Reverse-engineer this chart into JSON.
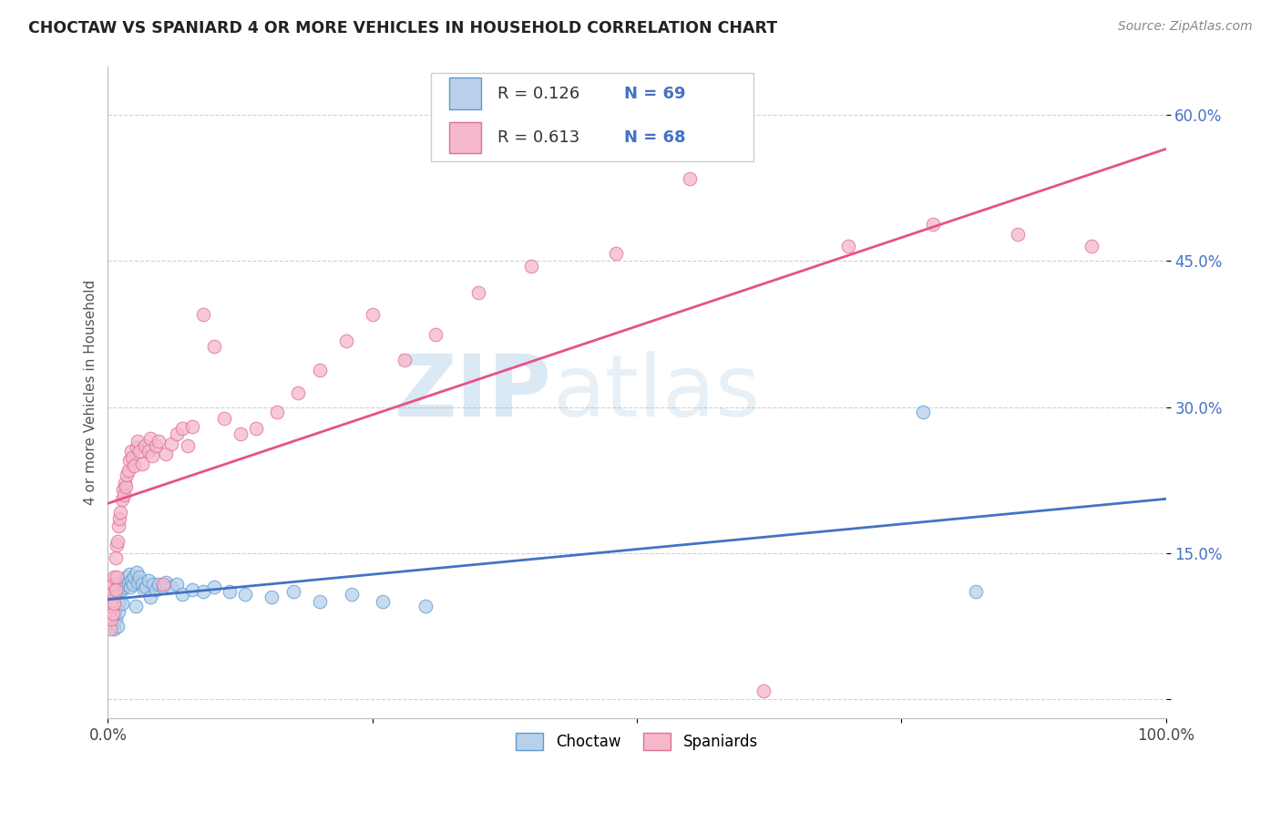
{
  "title": "CHOCTAW VS SPANIARD 4 OR MORE VEHICLES IN HOUSEHOLD CORRELATION CHART",
  "source": "Source: ZipAtlas.com",
  "ylabel": "4 or more Vehicles in Household",
  "xlim": [
    0.0,
    1.0
  ],
  "ylim": [
    -0.02,
    0.65
  ],
  "xtick_positions": [
    0.0,
    0.25,
    0.5,
    0.75,
    1.0
  ],
  "xtick_labels": [
    "0.0%",
    "",
    "",
    "",
    "100.0%"
  ],
  "ytick_positions": [
    0.0,
    0.15,
    0.3,
    0.45,
    0.6
  ],
  "ytick_labels": [
    "",
    "15.0%",
    "30.0%",
    "45.0%",
    "60.0%"
  ],
  "choctaw_fill": "#b8d0ea",
  "choctaw_edge": "#5b9bd5",
  "spaniard_fill": "#f5b8cb",
  "spaniard_edge": "#e07090",
  "choctaw_line_color": "#4472c4",
  "spaniard_line_color": "#e8508a",
  "R_choctaw": 0.126,
  "N_choctaw": 69,
  "R_spaniard": 0.613,
  "N_spaniard": 68,
  "watermark_zip": "ZIP",
  "watermark_atlas": "atlas",
  "background_color": "#ffffff",
  "grid_color": "#cccccc",
  "choctaw_x": [
    0.001,
    0.002,
    0.002,
    0.003,
    0.003,
    0.003,
    0.004,
    0.004,
    0.005,
    0.005,
    0.005,
    0.006,
    0.006,
    0.006,
    0.007,
    0.007,
    0.007,
    0.008,
    0.008,
    0.009,
    0.009,
    0.01,
    0.01,
    0.011,
    0.011,
    0.012,
    0.013,
    0.013,
    0.014,
    0.015,
    0.016,
    0.017,
    0.018,
    0.019,
    0.02,
    0.021,
    0.022,
    0.024,
    0.025,
    0.026,
    0.027,
    0.028,
    0.03,
    0.032,
    0.034,
    0.036,
    0.038,
    0.04,
    0.043,
    0.045,
    0.048,
    0.052,
    0.055,
    0.06,
    0.065,
    0.07,
    0.08,
    0.09,
    0.1,
    0.115,
    0.13,
    0.155,
    0.175,
    0.2,
    0.23,
    0.26,
    0.3,
    0.77,
    0.82
  ],
  "choctaw_y": [
    0.095,
    0.08,
    0.09,
    0.085,
    0.092,
    0.075,
    0.088,
    0.1,
    0.082,
    0.095,
    0.078,
    0.088,
    0.105,
    0.072,
    0.098,
    0.082,
    0.11,
    0.095,
    0.118,
    0.102,
    0.075,
    0.11,
    0.09,
    0.115,
    0.1,
    0.118,
    0.112,
    0.098,
    0.12,
    0.115,
    0.122,
    0.118,
    0.125,
    0.12,
    0.128,
    0.115,
    0.122,
    0.118,
    0.125,
    0.095,
    0.13,
    0.12,
    0.125,
    0.118,
    0.112,
    0.115,
    0.122,
    0.105,
    0.118,
    0.112,
    0.118,
    0.115,
    0.12,
    0.115,
    0.118,
    0.108,
    0.112,
    0.11,
    0.115,
    0.11,
    0.108,
    0.105,
    0.11,
    0.1,
    0.108,
    0.1,
    0.095,
    0.295,
    0.11
  ],
  "spaniard_x": [
    0.001,
    0.002,
    0.002,
    0.003,
    0.003,
    0.004,
    0.004,
    0.005,
    0.005,
    0.006,
    0.006,
    0.007,
    0.007,
    0.008,
    0.008,
    0.009,
    0.01,
    0.011,
    0.012,
    0.013,
    0.014,
    0.015,
    0.016,
    0.017,
    0.018,
    0.019,
    0.02,
    0.022,
    0.023,
    0.025,
    0.027,
    0.028,
    0.03,
    0.032,
    0.035,
    0.038,
    0.04,
    0.042,
    0.045,
    0.048,
    0.052,
    0.055,
    0.06,
    0.065,
    0.07,
    0.075,
    0.08,
    0.09,
    0.1,
    0.11,
    0.125,
    0.14,
    0.16,
    0.18,
    0.2,
    0.225,
    0.25,
    0.28,
    0.31,
    0.35,
    0.4,
    0.48,
    0.55,
    0.62,
    0.7,
    0.78,
    0.86,
    0.93
  ],
  "spaniard_y": [
    0.085,
    0.072,
    0.092,
    0.1,
    0.082,
    0.11,
    0.095,
    0.118,
    0.088,
    0.125,
    0.098,
    0.145,
    0.112,
    0.158,
    0.125,
    0.162,
    0.178,
    0.185,
    0.192,
    0.205,
    0.215,
    0.21,
    0.222,
    0.218,
    0.23,
    0.235,
    0.245,
    0.255,
    0.248,
    0.24,
    0.258,
    0.265,
    0.255,
    0.242,
    0.26,
    0.255,
    0.268,
    0.25,
    0.26,
    0.265,
    0.118,
    0.252,
    0.262,
    0.272,
    0.278,
    0.26,
    0.28,
    0.395,
    0.362,
    0.288,
    0.272,
    0.278,
    0.295,
    0.315,
    0.338,
    0.368,
    0.395,
    0.348,
    0.375,
    0.418,
    0.445,
    0.458,
    0.535,
    0.008,
    0.465,
    0.488,
    0.478,
    0.465
  ]
}
